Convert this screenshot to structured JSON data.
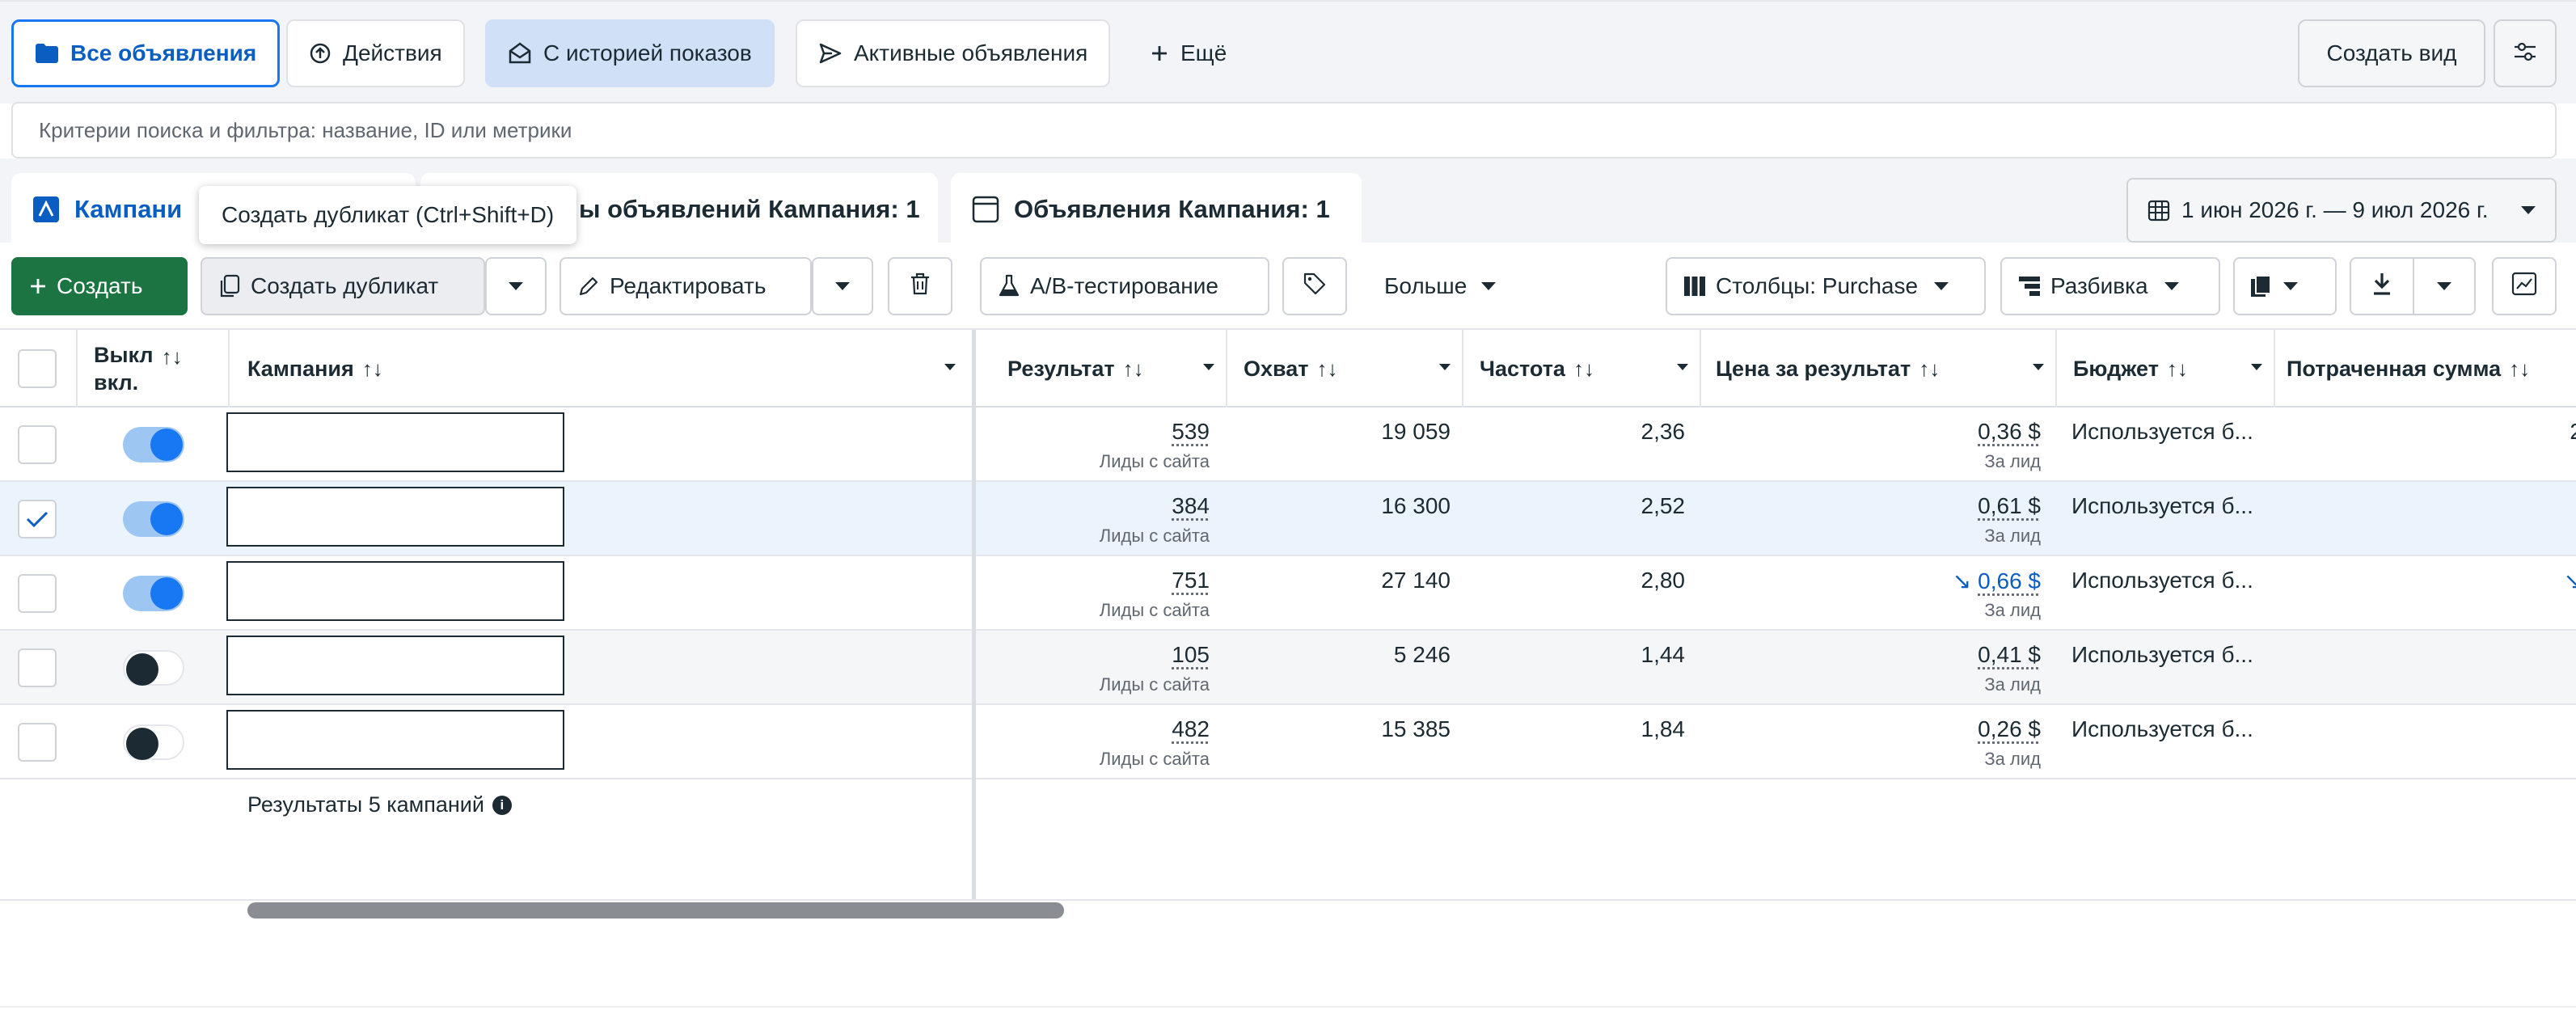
{
  "view_tabs": [
    {
      "label": "Все объявления",
      "icon": "folder-icon"
    },
    {
      "label": "Действия",
      "icon": "activity-icon"
    },
    {
      "label": "С историей показов",
      "icon": "envelope-open-icon"
    },
    {
      "label": "Активные объявления",
      "icon": "send-icon"
    },
    {
      "label": "Ещё",
      "icon": "plus-icon"
    }
  ],
  "create_view_label": "Создать вид",
  "search": {
    "placeholder": "Критерии поиска и фильтра: название, ID или метрики"
  },
  "level_tabs": [
    {
      "label": "Кампани",
      "icon": "campaign-icon"
    },
    {
      "label": "ы объявлений Кампания: 1",
      "icon": "ad-sets-icon"
    },
    {
      "label": "Объявления Кампания: 1",
      "icon": "ad-icon"
    }
  ],
  "tooltip": "Создать дубликат (Ctrl+Shift+D)",
  "date_range": "1 июн 2026 г. — 9 июл 2026 г.",
  "toolbar": {
    "create": "Создать",
    "duplicate": "Создать дубликат",
    "edit": "Редактировать",
    "ab_test": "A/B-тестирование",
    "more": "Больше",
    "columns": "Столбцы: Purchase",
    "breakdown": "Разбивка"
  },
  "columns": {
    "toggle_line1": "Выкл",
    "toggle_line2": "вкл.",
    "campaign": "Кампания",
    "result": "Результат",
    "reach": "Охват",
    "frequency": "Частота",
    "cost_per_result": "Цена за результат",
    "budget": "Бюджет",
    "spent": "Потраченная сумма",
    "sort_glyph": "↑↓"
  },
  "rows": [
    {
      "checked": false,
      "on": true,
      "result": "539",
      "result_type": "Лиды с сайта",
      "reach": "19 059",
      "frequency": "2,36",
      "cpr": "0,36 $",
      "cpr_sub": "За лид",
      "trend": "",
      "budget": "Используется б...",
      "spent_edge": "2"
    },
    {
      "checked": true,
      "on": true,
      "result": "384",
      "result_type": "Лиды с сайта",
      "reach": "16 300",
      "frequency": "2,52",
      "cpr": "0,61 $",
      "cpr_sub": "За лид",
      "trend": "",
      "budget": "Используется б...",
      "spent_edge": ""
    },
    {
      "checked": false,
      "on": true,
      "result": "751",
      "result_type": "Лиды с сайта",
      "reach": "27 140",
      "frequency": "2,80",
      "cpr": "0,66 $",
      "cpr_sub": "За лид",
      "trend": "↘",
      "budget": "Используется б...",
      "spent_edge": "↘"
    },
    {
      "checked": false,
      "on": false,
      "result": "105",
      "result_type": "Лиды с сайта",
      "reach": "5 246",
      "frequency": "1,44",
      "cpr": "0,41 $",
      "cpr_sub": "За лид",
      "trend": "",
      "budget": "Используется б...",
      "spent_edge": ""
    },
    {
      "checked": false,
      "on": false,
      "result": "482",
      "result_type": "Лиды с сайта",
      "reach": "15 385",
      "frequency": "1,84",
      "cpr": "0,26 $",
      "cpr_sub": "За лид",
      "trend": "",
      "budget": "Используется б...",
      "spent_edge": ""
    }
  ],
  "summary": "Результаты 5 кампаний",
  "colors": {
    "accent": "#1877f2",
    "create_green": "#1b7442",
    "selected_row": "#ebf3fd"
  }
}
